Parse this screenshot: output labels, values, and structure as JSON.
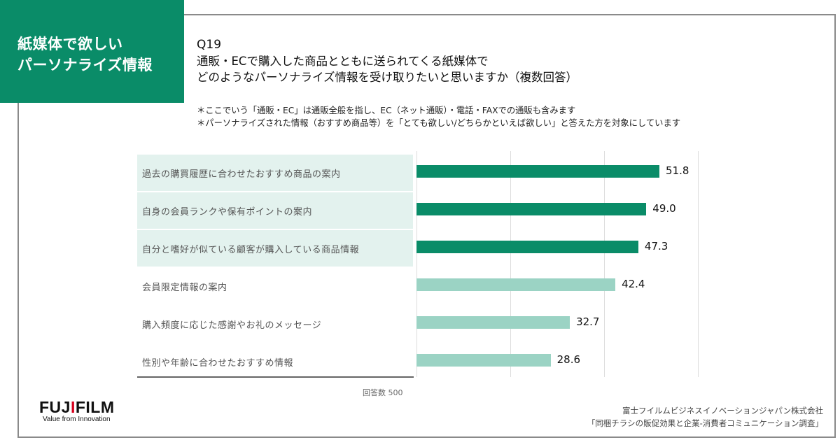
{
  "header": {
    "badge_lines": [
      "紙媒体で欲しい",
      "パーソナライズ情報"
    ],
    "question_number": "Q19",
    "question_lines": [
      "通販・ECで購入した商品とともに送られてくる紙媒体で",
      "どのようなパーソナライズ情報を受け取りたいと思いますか（複数回答）"
    ],
    "notes": [
      "＊ここでいう「通販・EC」は通販全般を指し、EC（ネット通販）・電話・FAXでの通販も含みます",
      "＊パーソナライズされた情報（おすすめ商品等）を「とても欲しい/どちらかといえば欲しい」と答えた方を対象にしています"
    ]
  },
  "chart_data": {
    "type": "bar",
    "orientation": "horizontal",
    "categories": [
      "過去の購買履歴に合わせたおすすめ商品の案内",
      "自身の会員ランクや保有ポイントの案内",
      "自分と嗜好が似ている顧客が購入している商品情報",
      "会員限定情報の案内",
      "購入頻度に応じた感謝やお礼のメッセージ",
      "性別や年齢に合わせたおすすめ情報"
    ],
    "values": [
      51.8,
      49.0,
      47.3,
      42.4,
      32.7,
      28.6
    ],
    "value_labels": [
      "51.8",
      "49.0",
      "47.3",
      "42.4",
      "32.7",
      "28.6"
    ],
    "highlighted": [
      true,
      true,
      true,
      false,
      false,
      false
    ],
    "xlim": [
      0,
      60
    ],
    "gridlines_at": [
      0,
      20,
      40,
      60
    ],
    "grid": true,
    "unit": "%",
    "colors": {
      "highlight": "#0a8c68",
      "normal": "#9bd3c4",
      "label_bg": "#e3f2ee"
    },
    "sample_note": "回答数 500"
  },
  "footer": {
    "logo_text": "FUJIFILM",
    "tagline": "Value from Innovation",
    "source_lines": [
      "富士フイルムビジネスイノベーションジャパン株式会社",
      "「同梱チラシの販促効果と企業-消費者コミュニケーション調査」"
    ]
  }
}
